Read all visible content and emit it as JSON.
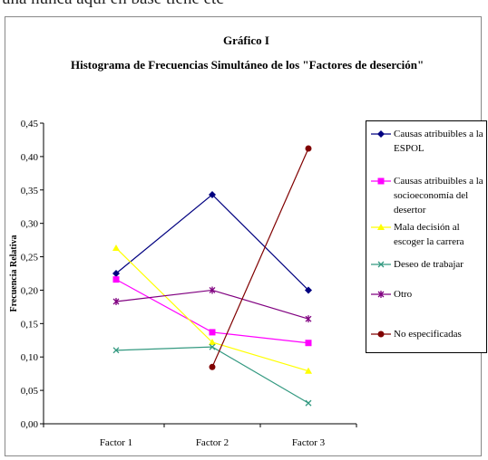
{
  "header_fragment": "una nunca aquí en base tiene etc",
  "chart_data": {
    "type": "line",
    "title": "Gráfico I",
    "subtitle": "Histograma de Frecuencias Simultáneo de los \"Factores de deserción\"",
    "ylabel": "Frecuencia Relativa",
    "xlabel": "",
    "categories": [
      "Factor 1",
      "Factor 2",
      "Factor 3"
    ],
    "ylim": [
      0,
      0.45
    ],
    "yticks": [
      "0,00",
      "0,05",
      "0,10",
      "0,15",
      "0,20",
      "0,25",
      "0,30",
      "0,35",
      "0,40",
      "0,45"
    ],
    "legend_position": "right",
    "grid": false,
    "series": [
      {
        "name": "Causas atribuibles a la ESPOL",
        "values": [
          0.225,
          0.343,
          0.2
        ],
        "color": "#000080",
        "marker": "diamond"
      },
      {
        "name": "Causas atribuibles a la socioeconomía del desertor",
        "values": [
          0.216,
          0.137,
          0.121
        ],
        "color": "#ff00ff",
        "marker": "square"
      },
      {
        "name": "Mala decisión al escoger la carrera",
        "values": [
          0.263,
          0.122,
          0.079
        ],
        "color": "#ffff00",
        "marker": "triangle"
      },
      {
        "name": "Deseo de trabajar",
        "values": [
          0.11,
          0.115,
          0.031
        ],
        "color": "#339980",
        "marker": "x"
      },
      {
        "name": "Otro",
        "values": [
          0.183,
          0.2,
          0.157
        ],
        "color": "#800080",
        "marker": "star"
      },
      {
        "name": "No especificadas",
        "values": [
          null,
          0.085,
          0.412
        ],
        "color": "#800000",
        "marker": "circle"
      }
    ]
  }
}
